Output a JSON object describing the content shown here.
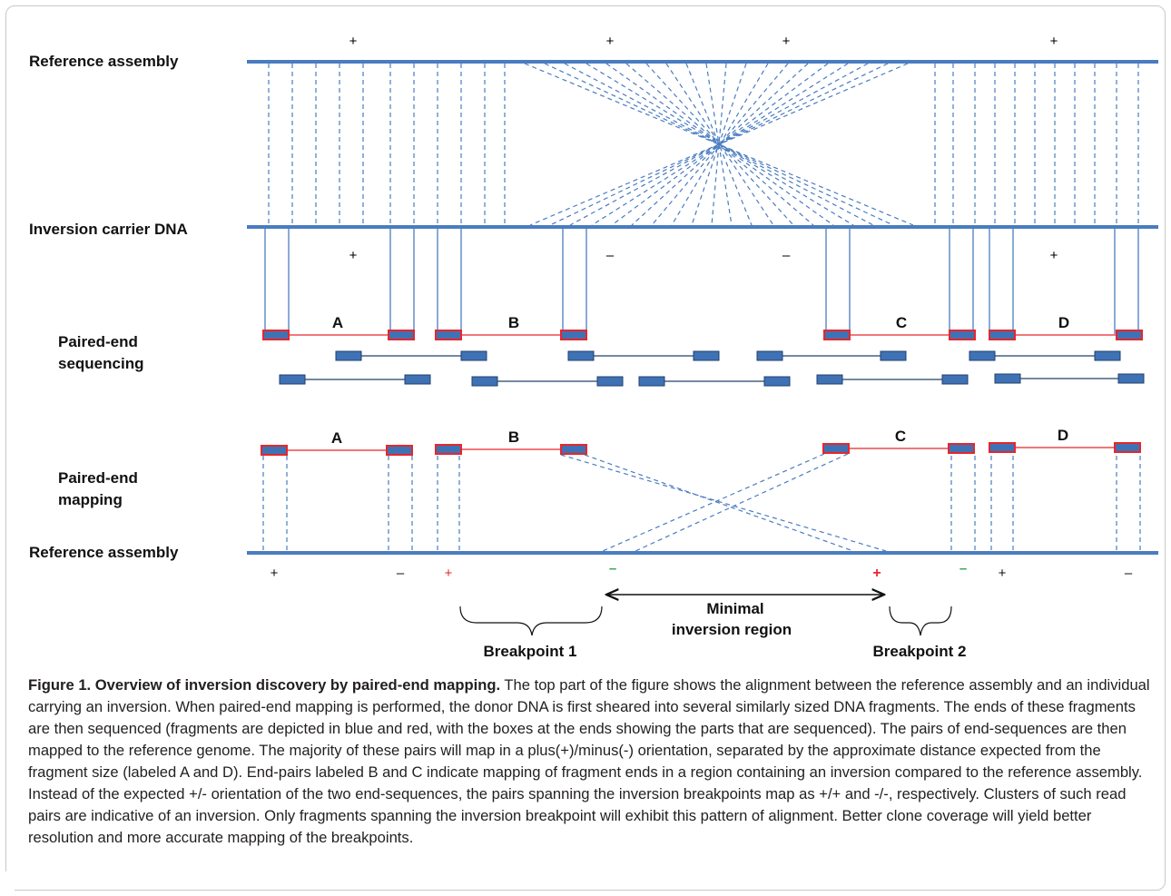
{
  "labels": {
    "reference_assembly_top": "Reference assembly",
    "inversion_carrier": "Inversion carrier DNA",
    "pe_sequencing_line1": "Paired-end",
    "pe_sequencing_line2": "sequencing",
    "pe_mapping_line1": "Paired-end",
    "pe_mapping_line2": "mapping",
    "reference_assembly_bottom": "Reference assembly",
    "minimal_region_line1": "Minimal",
    "minimal_region_line2": "inversion region",
    "breakpoint1": "Breakpoint 1",
    "breakpoint2": "Breakpoint 2"
  },
  "signs": {
    "top": [
      "+",
      "+",
      "+",
      "+"
    ],
    "carrier": [
      "+",
      "–",
      "–",
      "+"
    ],
    "bottom": [
      "+",
      "–",
      "+",
      "–",
      "+",
      "–",
      "+",
      "–"
    ]
  },
  "fragments": {
    "sequencing": [
      "A",
      "B",
      "C",
      "D"
    ],
    "mapping": [
      "A",
      "B",
      "C",
      "D"
    ]
  },
  "colors": {
    "line_blue": "#4a7cc0",
    "box_fill": "#3f72b4",
    "box_border_red": "#e8262b",
    "dark_line": "#20406e",
    "green": "#3aa84f",
    "red": "#e8262b"
  },
  "caption": {
    "title": "Figure 1. Overview of inversion discovery by paired-end mapping.",
    "body": " The top part of the figure shows the alignment between the reference assembly and an individual carrying an inversion. When paired-end mapping is performed, the donor DNA is first sheared into several similarly sized DNA fragments. The ends of these fragments are then sequenced (fragments are depicted in blue and red, with the boxes at the ends showing the parts that are sequenced). The pairs of end-sequences are then mapped to the reference genome. The majority of these pairs will map in a plus(+)/minus(-) orientation, separated by the approximate distance expected from the fragment size (labeled A and D). End-pairs labeled B and C indicate mapping of fragment ends in a region containing an inversion compared to the reference assembly. Instead of the expected +/- orientation of the two end-sequences, the pairs spanning the inversion breakpoints map as +/+ and -/-, respectively. Clusters of such read pairs are indicative of an inversion. Only fragments spanning the inversion breakpoint will exhibit this pattern of alignment. Better clone coverage will yield better resolution and more accurate mapping of the breakpoints."
  }
}
